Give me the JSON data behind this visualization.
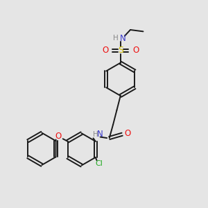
{
  "bg_color": "#e5e5e5",
  "bond_color": "#1a1a1a",
  "colors": {
    "N": "#3a3acc",
    "O": "#ee1111",
    "S": "#ccbb00",
    "Cl": "#22aa22",
    "H": "#888888",
    "C": "#1a1a1a"
  }
}
